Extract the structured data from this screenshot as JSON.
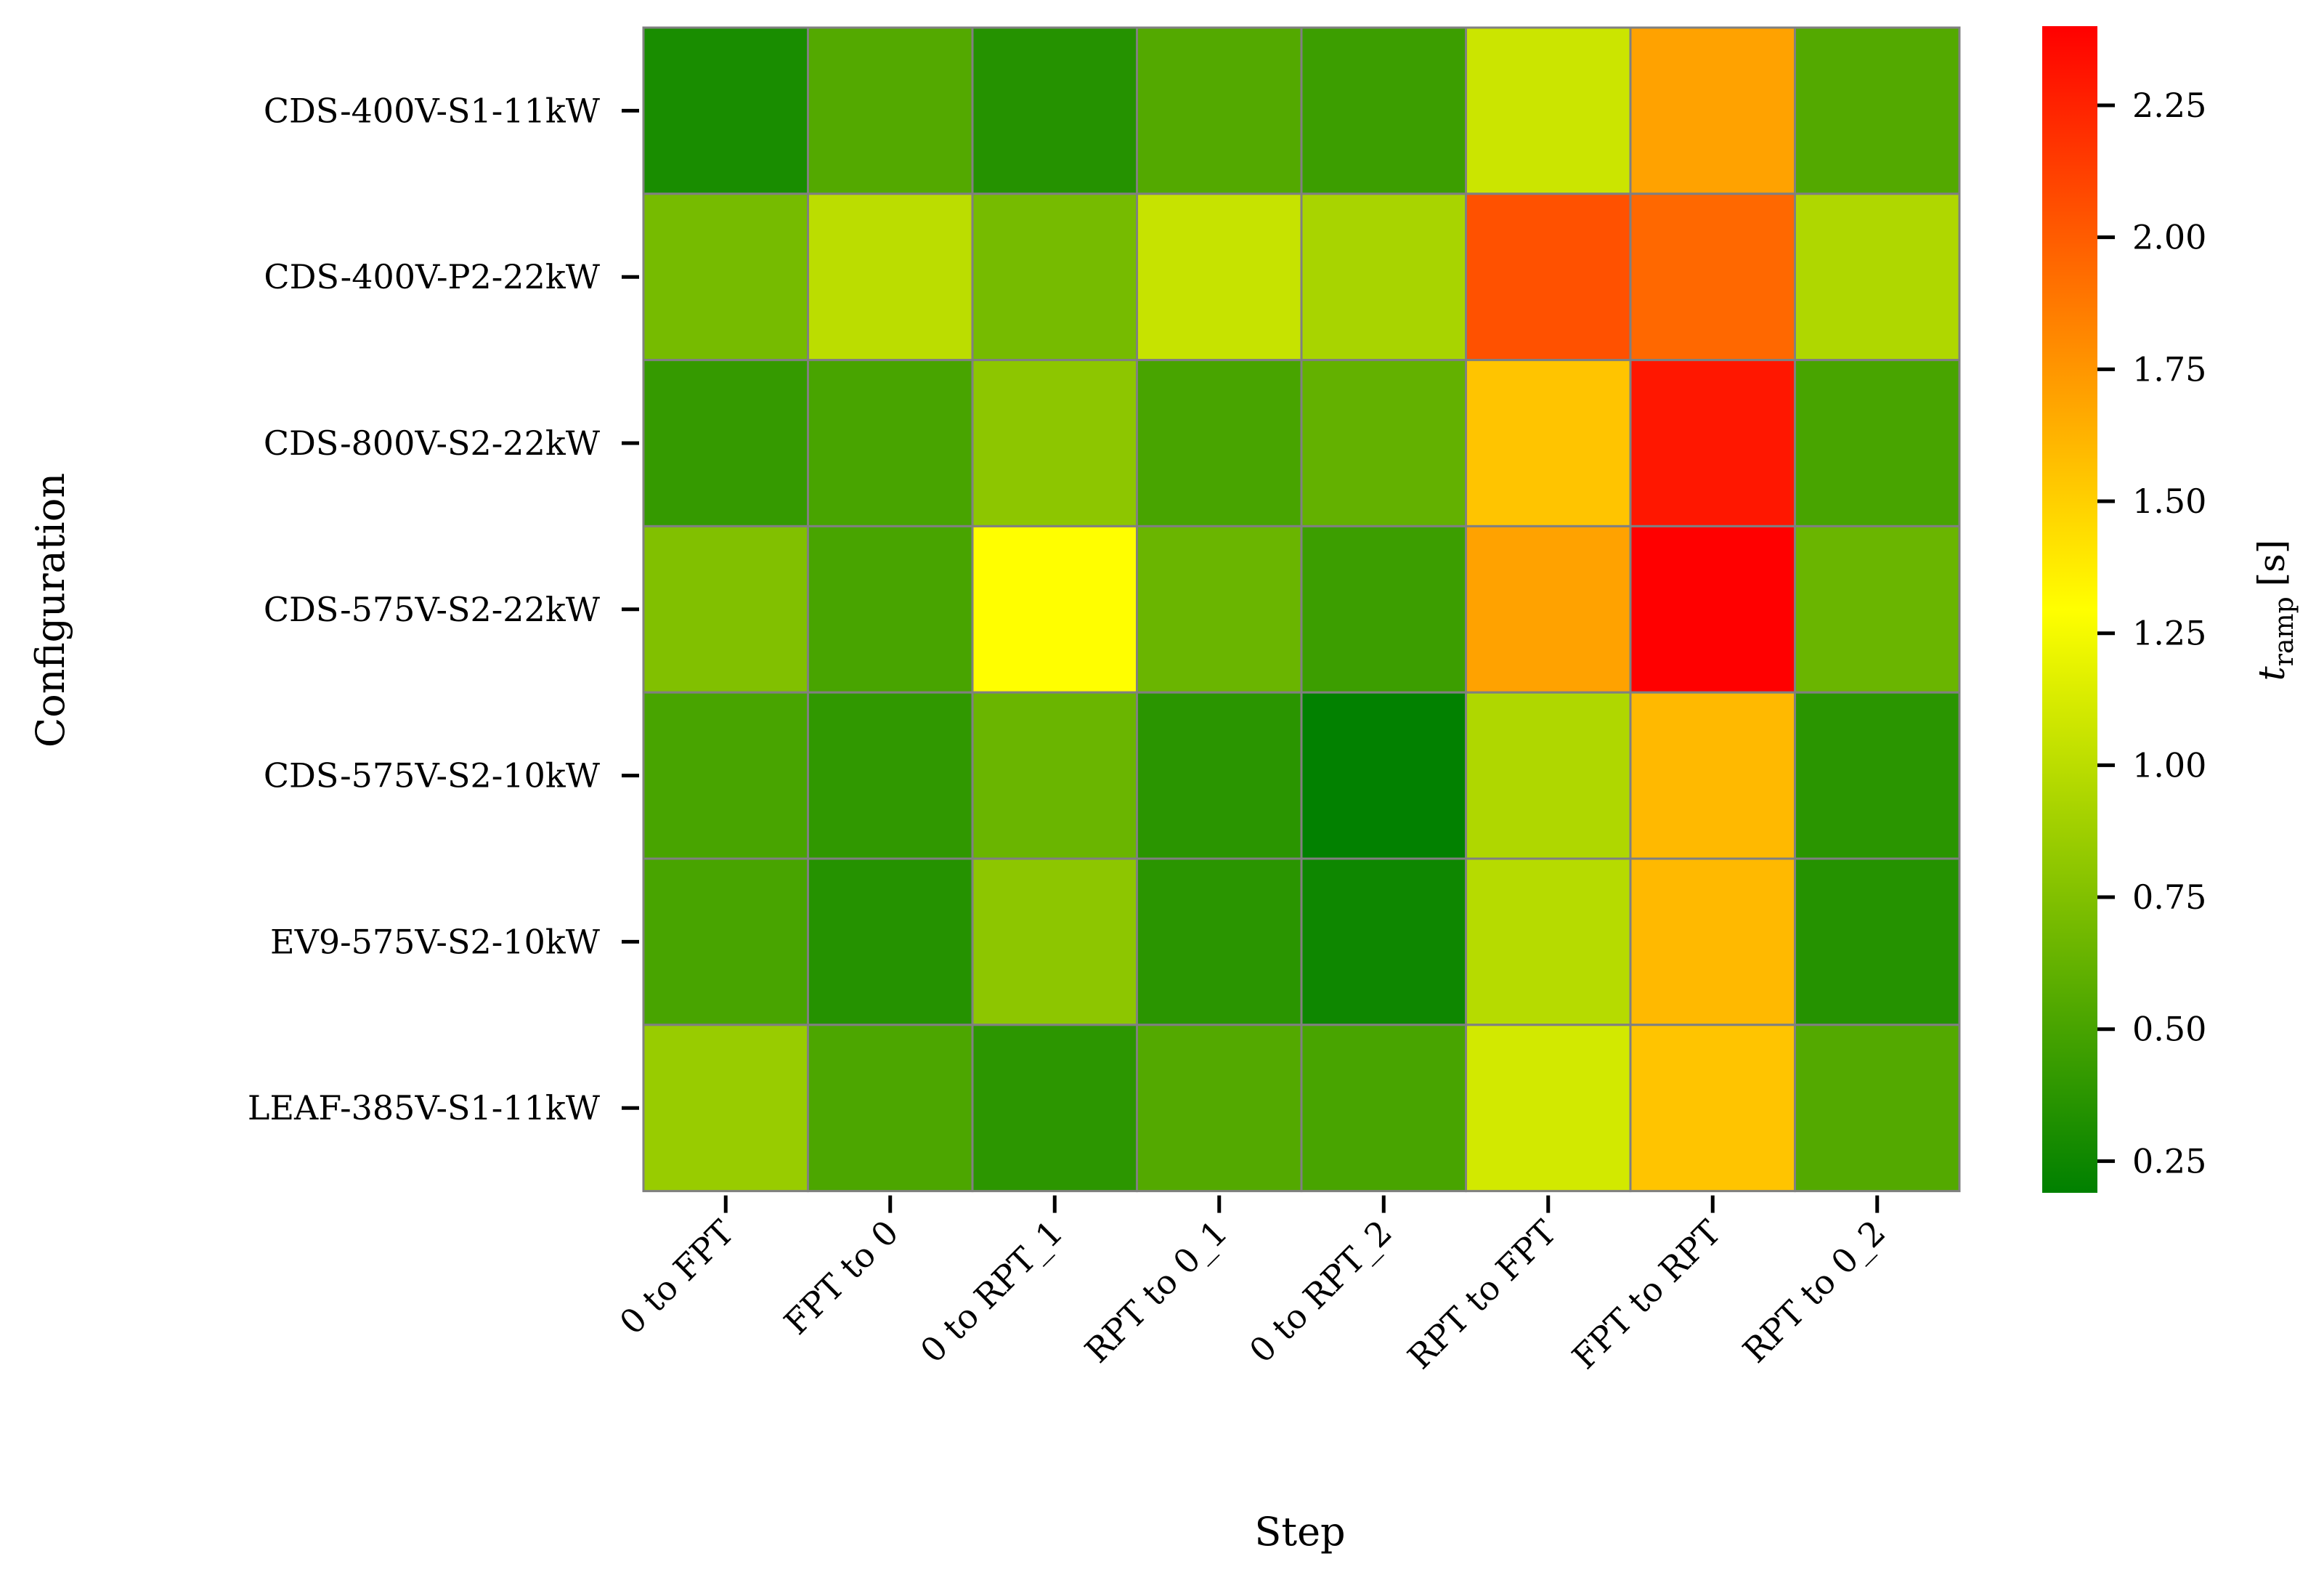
{
  "chart_data": {
    "type": "heatmap",
    "title": "",
    "xlabel": "Step",
    "ylabel": "Configuration",
    "colorbar_label": "t_ramp [s]",
    "colorbar_label_main": "t",
    "colorbar_label_sub": "ramp",
    "colorbar_label_unit": "[s]",
    "x_categories": [
      "0 to FPT",
      "FPT to 0",
      "0 to RPT_1",
      "RPT to 0_1",
      "0 to RPT_2",
      "RPT to FPT",
      "FPT to RPT",
      "RPT to 0_2"
    ],
    "y_categories": [
      "CDS-400V-S1-11kW",
      "CDS-400V-P2-22kW",
      "CDS-800V-S2-22kW",
      "CDS-575V-S2-22kW",
      "CDS-575V-S2-10kW",
      "EV9-575V-S2-10kW",
      "LEAF-385V-S1-11kW"
    ],
    "values": [
      [
        0.3,
        0.55,
        0.35,
        0.55,
        0.45,
        1.07,
        1.7,
        0.55
      ],
      [
        0.7,
        1.0,
        0.7,
        1.05,
        0.92,
        2.05,
        1.95,
        0.95
      ],
      [
        0.42,
        0.5,
        0.8,
        0.5,
        0.62,
        1.55,
        2.3,
        0.5
      ],
      [
        0.75,
        0.5,
        1.3,
        0.65,
        0.45,
        1.7,
        2.4,
        0.65
      ],
      [
        0.5,
        0.4,
        0.65,
        0.37,
        0.2,
        0.95,
        1.6,
        0.37
      ],
      [
        0.5,
        0.35,
        0.8,
        0.37,
        0.25,
        0.98,
        1.6,
        0.35
      ],
      [
        0.85,
        0.52,
        0.38,
        0.55,
        0.5,
        1.1,
        1.55,
        0.55
      ]
    ],
    "colorbar_ticks": [
      0.25,
      0.5,
      0.75,
      1.0,
      1.25,
      1.5,
      1.75,
      2.0,
      2.25
    ],
    "colorbar_tick_labels": [
      "0.25",
      "0.50",
      "0.75",
      "1.00",
      "1.25",
      "1.50",
      "1.75",
      "2.00",
      "2.25"
    ],
    "vmin": 0.19,
    "vmax": 2.4,
    "colormap": [
      "#008000",
      "#ffff00",
      "#ff0000"
    ],
    "cell_border_color": "#808080"
  }
}
